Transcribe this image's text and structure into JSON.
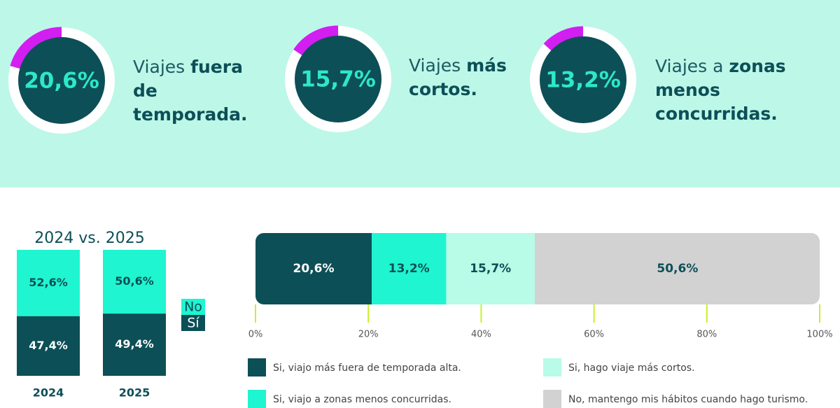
{
  "chart_data": [
    {
      "type": "donut",
      "values": [
        20.6
      ],
      "value_labels": [
        "20,6%"
      ],
      "label_regular": "Viajes",
      "label_bold": "fuera de temporada.",
      "color": "#d21ef0"
    },
    {
      "type": "donut",
      "values": [
        15.7
      ],
      "value_labels": [
        "15,7%"
      ],
      "label_regular": "Viajes",
      "label_bold": "más cortos.",
      "color": "#d21ef0"
    },
    {
      "type": "donut",
      "values": [
        13.2
      ],
      "value_labels": [
        "13,2%"
      ],
      "label_regular": "Viajes a",
      "label_bold": "zonas menos concurridas.",
      "color": "#d21ef0"
    },
    {
      "type": "stacked_bar",
      "title": "2024 vs. 2025",
      "categories": [
        "2024",
        "2025"
      ],
      "ylim": [
        0,
        100
      ],
      "series": [
        {
          "name": "Sí",
          "color": "#0d4f57",
          "values": [
            47.4,
            49.4
          ],
          "value_labels": [
            "47,4%",
            "49,4%"
          ]
        },
        {
          "name": "No",
          "color": "#1ff5d0",
          "values": [
            52.6,
            50.6
          ],
          "value_labels": [
            "52,6%",
            "50,6%"
          ]
        }
      ]
    },
    {
      "type": "stacked_barh",
      "xlim": [
        0,
        100
      ],
      "xticks": [
        {
          "value": 0,
          "label": "0%"
        },
        {
          "value": 20,
          "label": "20%"
        },
        {
          "value": 40,
          "label": "40%"
        },
        {
          "value": 60,
          "label": "60%"
        },
        {
          "value": 80,
          "label": "80%"
        },
        {
          "value": 100,
          "label": "100%"
        }
      ],
      "series": [
        {
          "name": "Si, viajo más fuera de temporada alta.",
          "color": "#0d4f57",
          "values": [
            20.6
          ],
          "value_labels": [
            "20,6%"
          ]
        },
        {
          "name": "Si, viajo a zonas menos concurridas.",
          "color": "#1ff5d0",
          "values": [
            13.2
          ],
          "value_labels": [
            "13,2%"
          ]
        },
        {
          "name": "Si, hago viaje más cortos.",
          "color": "#b8fbe6",
          "values": [
            15.7
          ],
          "value_labels": [
            "15,7%"
          ]
        },
        {
          "name": "No, mantengo mis hábitos cuando hago turismo.",
          "color": "#d2d2d2",
          "values": [
            50.6
          ],
          "value_labels": [
            "50,6%"
          ]
        }
      ]
    }
  ]
}
